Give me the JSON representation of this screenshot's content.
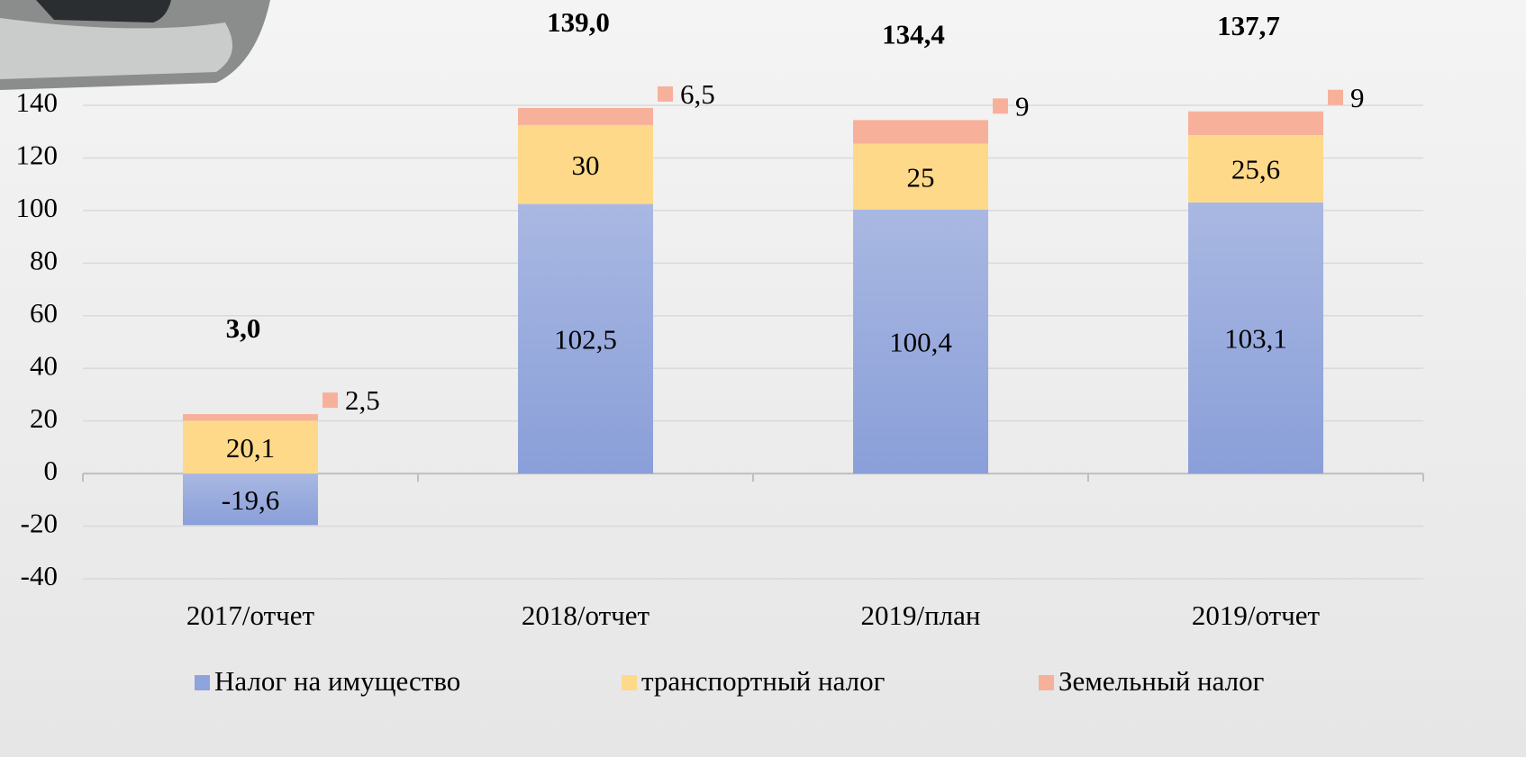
{
  "chart_data": {
    "type": "stacked_bar",
    "categories": [
      "2017/отчет",
      "2018/отчет",
      "2019/план",
      "2019/отчет"
    ],
    "series": [
      {
        "name": "Налог на имущество",
        "color": "#8fa3dc",
        "values": [
          -19.6,
          102.5,
          100.4,
          103.1
        ],
        "value_labels": [
          "-19,6",
          "102,5",
          "100,4",
          "103,1"
        ]
      },
      {
        "name": "транспортный налог",
        "color": "#ffd98a",
        "values": [
          20.1,
          30,
          25,
          25.6
        ],
        "value_labels": [
          "20,1",
          "30",
          "25",
          "25,6"
        ]
      },
      {
        "name": "Земельный налог",
        "color": "#f7b19b",
        "values": [
          2.5,
          6.5,
          9,
          9
        ],
        "value_labels": [
          "2,5",
          "6,5",
          "9",
          "9"
        ]
      }
    ],
    "totals": [
      3.0,
      139.0,
      134.4,
      137.7
    ],
    "total_labels": [
      "3,0",
      "139,0",
      "134,4",
      "137,7"
    ],
    "ylim": [
      -40,
      140
    ],
    "yticks": [
      -40,
      -20,
      0,
      20,
      40,
      60,
      80,
      100,
      120,
      140
    ],
    "grid": true,
    "legend": "bottom"
  }
}
